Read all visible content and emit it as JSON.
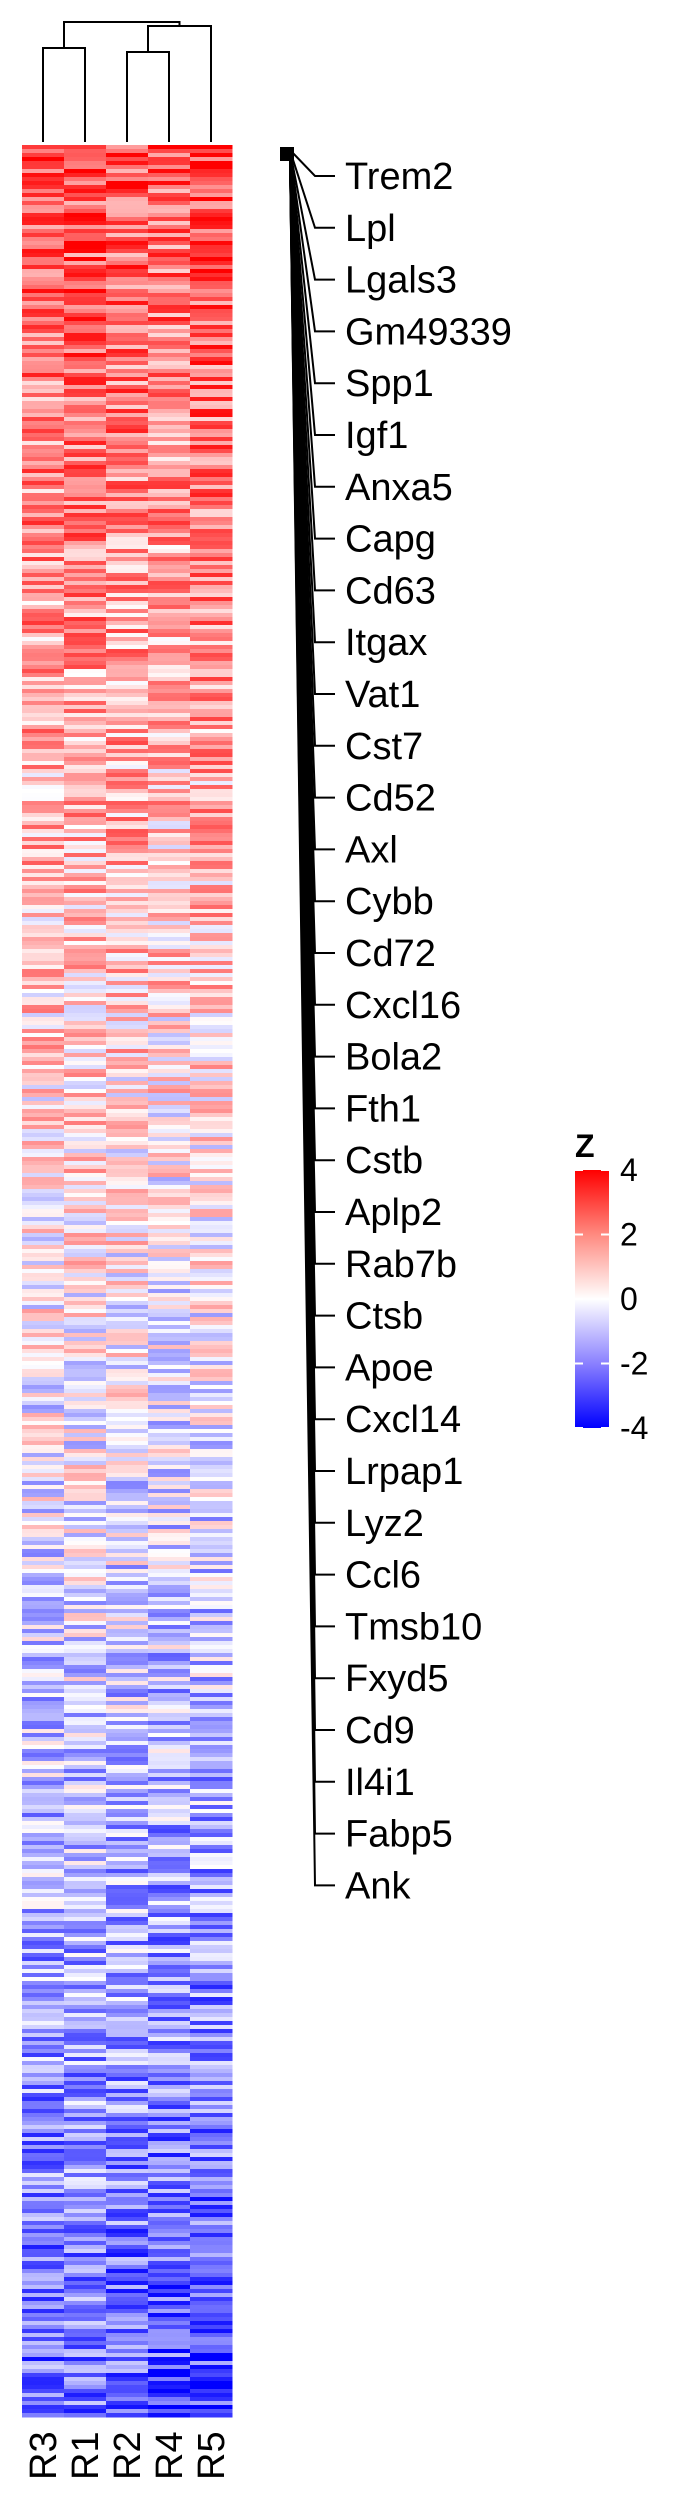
{
  "chart_data": {
    "type": "heatmap",
    "columns": [
      "R3",
      "R1",
      "R2",
      "R4",
      "R5"
    ],
    "highlighted_genes": [
      "Trem2",
      "Lpl",
      "Lgals3",
      "Gm49339",
      "Spp1",
      "Igf1",
      "Anxa5",
      "Capg",
      "Cd63",
      "Itgax",
      "Vat1",
      "Cst7",
      "Cd52",
      "Axl",
      "Cybb",
      "Cd72",
      "Cxcl16",
      "Bola2",
      "Fth1",
      "Cstb",
      "Aplp2",
      "Rab7b",
      "Ctsb",
      "Apoe",
      "Cxcl14",
      "Lrpap1",
      "Lyz2",
      "Ccl6",
      "Tmsb10",
      "Fxyd5",
      "Cd9",
      "Il4i1",
      "Fabp5",
      "Ank"
    ],
    "value_trend": {
      "description_rows": "rows ordered from highest to lowest z-score; top rows red, bottom rows blue",
      "column_mean_top": [
        2.6,
        2.8,
        2.7,
        2.5,
        2.9
      ],
      "column_mean_bottom": [
        -2.4,
        -2.3,
        -2.5,
        -2.7,
        -2.9
      ]
    },
    "legend": {
      "title": "Z",
      "ticks": [
        4,
        2,
        0,
        -2,
        -4
      ],
      "range": [
        -4,
        4
      ],
      "colors": {
        "high": "#ff0000",
        "mid": "#ffffff",
        "low": "#0000ff"
      }
    },
    "dendrogram": {
      "merge_order": [
        [
          "R3",
          "R1"
        ],
        [
          "R2",
          "R4"
        ],
        [
          "R2,R4",
          "R5"
        ],
        [
          "R3,R1",
          "R2,R4,R5"
        ]
      ]
    }
  }
}
